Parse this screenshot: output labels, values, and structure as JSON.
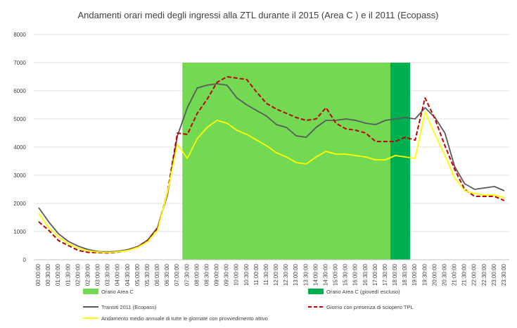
{
  "chart_data": {
    "type": "line",
    "title": "Andamenti orari medi degli ingressi alla ZTL durante il 2015 (Area C )  e il 2011 (Ecopass)",
    "xlabel": "",
    "ylabel": "",
    "ylim": [
      0,
      8000
    ],
    "y_ticks": [
      0,
      1000,
      2000,
      3000,
      4000,
      5000,
      6000,
      7000,
      8000
    ],
    "grid": true,
    "categories": [
      "00:00:00",
      "00:30:00",
      "01:00:00",
      "01:30:00",
      "02:00:00",
      "02:30:00",
      "03:00:00",
      "03:30:00",
      "04:00:00",
      "04:30:00",
      "05:00:00",
      "05:30:00",
      "06:00:00",
      "06:30:00",
      "07:00:00",
      "07:30:00",
      "08:00:00",
      "08:30:00",
      "09:00:00",
      "09:30:00",
      "10:00:00",
      "10:30:00",
      "11:00:00",
      "11:30:00",
      "12:00:00",
      "12:30:00",
      "13:00:00",
      "13:30:00",
      "14:00:00",
      "14:30:00",
      "15:00:00",
      "15:30:00",
      "16:00:00",
      "16:30:00",
      "17:00:00",
      "17:30:00",
      "18:00:00",
      "18:30:00",
      "19:00:00",
      "19:30:00",
      "20:00:00",
      "20:30:00",
      "21:00:00",
      "21:30:00",
      "22:00:00",
      "22:30:00",
      "23:00:00",
      "23:30:00"
    ],
    "bands": [
      {
        "name": "Orario Area C",
        "color": "#73d952",
        "value": 7000,
        "start_category": "07:30:00",
        "end_category": "18:00:00"
      },
      {
        "name": "Orario Area C (giovedì escluso)",
        "color": "#00b050",
        "value": 7000,
        "start_category": "18:00:00",
        "end_category": "19:00:00"
      }
    ],
    "series": [
      {
        "name": "Transiti 2011 (Ecopass)",
        "color": "#595959",
        "style": "solid",
        "values": [
          1850,
          1350,
          920,
          650,
          480,
          360,
          290,
          280,
          300,
          360,
          470,
          700,
          1150,
          2300,
          4400,
          5400,
          6100,
          6200,
          6250,
          6200,
          5750,
          5500,
          5300,
          5100,
          4800,
          4700,
          4400,
          4350,
          4700,
          4950,
          4950,
          5000,
          4950,
          4850,
          4800,
          4950,
          5000,
          5050,
          5000,
          5400,
          5050,
          4500,
          3300,
          2700,
          2500,
          2550,
          2600,
          2450
        ]
      },
      {
        "name": "Giorno con presenza di sciopero TPL",
        "color": "#c00000",
        "style": "dashed",
        "values": [
          1350,
          1050,
          680,
          500,
          330,
          260,
          250,
          240,
          270,
          340,
          460,
          680,
          1100,
          2400,
          4500,
          4450,
          5200,
          5700,
          6300,
          6500,
          6450,
          6400,
          5950,
          5550,
          5350,
          5200,
          5050,
          4950,
          5000,
          5400,
          4850,
          4650,
          4600,
          4500,
          4200,
          4200,
          4200,
          4350,
          4250,
          5750,
          5000,
          4050,
          3200,
          2500,
          2250,
          2250,
          2250,
          2100
        ]
      },
      {
        "name": "Andamento medio annuale di tutte le giornate con provvedimento attivo",
        "color": "#ffff00",
        "style": "solid",
        "values": [
          1650,
          1150,
          820,
          560,
          410,
          320,
          270,
          260,
          280,
          330,
          440,
          640,
          1050,
          2400,
          4100,
          3600,
          4300,
          4700,
          4950,
          4850,
          4600,
          4450,
          4250,
          4050,
          3800,
          3650,
          3450,
          3400,
          3650,
          3850,
          3750,
          3750,
          3700,
          3650,
          3550,
          3550,
          3700,
          3650,
          3600,
          5250,
          4450,
          3700,
          2900,
          2450,
          2350,
          2300,
          2300,
          2200
        ]
      }
    ]
  }
}
